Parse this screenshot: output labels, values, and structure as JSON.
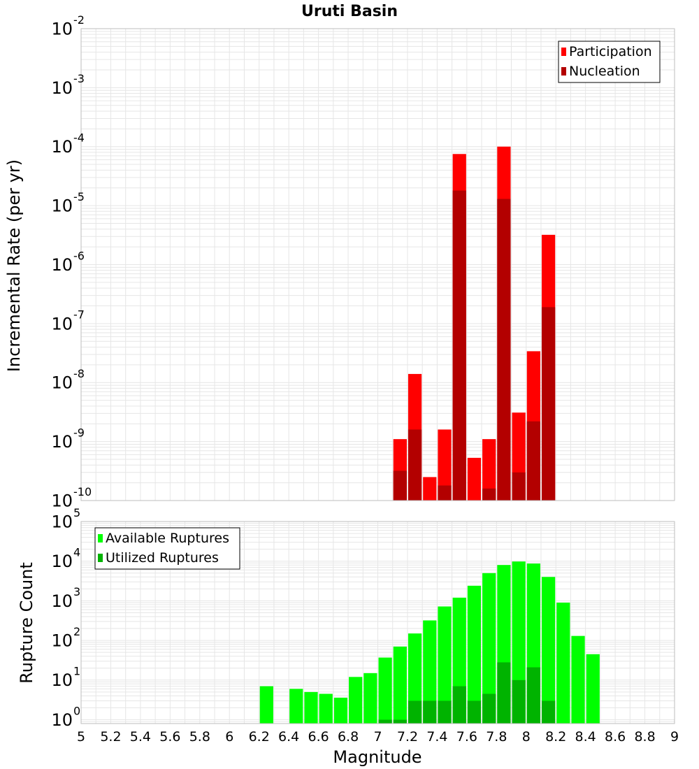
{
  "chart_data": [
    {
      "type": "bar",
      "title": "Uruti Basin",
      "xlabel": "",
      "ylabel": "Incremental Rate (per yr)",
      "yscale": "log",
      "ylim": [
        1e-10,
        0.01
      ],
      "y_tick_labels": [
        {
          "base": "10",
          "exp": "-2",
          "value": 0.01
        },
        {
          "base": "10",
          "exp": "-3",
          "value": 0.001
        },
        {
          "base": "10",
          "exp": "-4",
          "value": 0.0001
        },
        {
          "base": "10",
          "exp": "-5",
          "value": 1e-05
        },
        {
          "base": "10",
          "exp": "-6",
          "value": 1e-06
        },
        {
          "base": "10",
          "exp": "-7",
          "value": 1e-07
        },
        {
          "base": "10",
          "exp": "-8",
          "value": 1e-08
        },
        {
          "base": "10",
          "exp": "-9",
          "value": 1e-09
        },
        {
          "base": "10",
          "exp": "-10",
          "value": 1e-10
        }
      ],
      "grid": true,
      "legend_position": "top-right",
      "x": [
        7.15,
        7.25,
        7.35,
        7.45,
        7.55,
        7.65,
        7.75,
        7.85,
        7.95,
        8.05,
        8.15
      ],
      "series": [
        {
          "name": "Participation",
          "color": "#ff0000",
          "values": [
            1.1e-09,
            1.4e-08,
            2.5e-10,
            1.6e-09,
            7.5e-05,
            5.3e-10,
            1.1e-09,
            0.0001,
            3.1e-09,
            3.4e-08,
            3.2e-06
          ]
        },
        {
          "name": "Nucleation",
          "color": "#b30000",
          "values": [
            3.2e-10,
            1.6e-09,
            null,
            1.8e-10,
            1.8e-05,
            null,
            1.6e-10,
            1.3e-05,
            3e-10,
            2.2e-09,
            1.9e-07
          ]
        }
      ]
    },
    {
      "type": "bar",
      "title": "",
      "xlabel": "Magnitude",
      "ylabel": "Rupture Count",
      "yscale": "log",
      "ylim": [
        0.8,
        100000
      ],
      "xlim": [
        5,
        9
      ],
      "x_ticks": [
        "5",
        "5.2",
        "5.4",
        "5.6",
        "5.8",
        "6",
        "6.2",
        "6.4",
        "6.6",
        "6.8",
        "7",
        "7.2",
        "7.4",
        "7.6",
        "7.8",
        "8",
        "8.2",
        "8.4",
        "8.6",
        "8.8",
        "9"
      ],
      "y_tick_labels": [
        {
          "base": "10",
          "exp": "5",
          "value": 100000
        },
        {
          "base": "10",
          "exp": "4",
          "value": 10000
        },
        {
          "base": "10",
          "exp": "3",
          "value": 1000
        },
        {
          "base": "10",
          "exp": "2",
          "value": 100
        },
        {
          "base": "10",
          "exp": "1",
          "value": 10
        },
        {
          "base": "10",
          "exp": "0",
          "value": 1
        }
      ],
      "grid": true,
      "legend_position": "top-left",
      "x": [
        6.25,
        6.45,
        6.55,
        6.65,
        6.75,
        6.85,
        6.95,
        7.05,
        7.15,
        7.25,
        7.35,
        7.45,
        7.55,
        7.65,
        7.75,
        7.85,
        7.95,
        8.05,
        8.15,
        8.25,
        8.35,
        8.45
      ],
      "series": [
        {
          "name": "Available Ruptures",
          "color": "#00ff00",
          "values": [
            7,
            6,
            5,
            4.5,
            3.6,
            12,
            15,
            37,
            70,
            150,
            320,
            720,
            1200,
            2400,
            5000,
            8000,
            9800,
            8700,
            4000,
            900,
            130,
            45
          ]
        },
        {
          "name": "Utilized Ruptures",
          "color": "#00b300",
          "values": [
            null,
            null,
            null,
            null,
            null,
            null,
            null,
            1,
            1,
            3,
            3,
            3,
            7,
            3,
            4.5,
            28,
            10,
            21,
            3,
            null,
            null,
            null
          ]
        }
      ]
    }
  ]
}
